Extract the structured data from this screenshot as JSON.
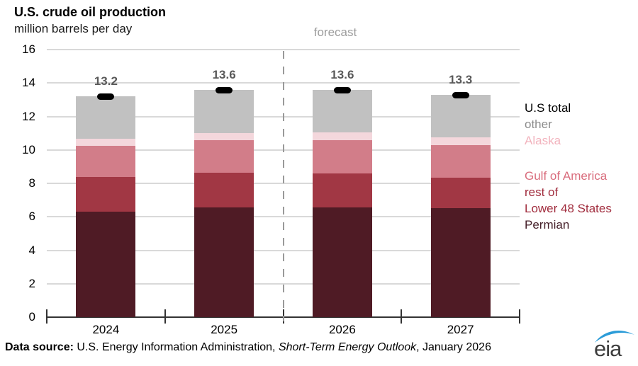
{
  "title": "U.S. crude oil production",
  "subtitle": "million barrels per day",
  "forecast_label": "forecast",
  "chart_data": {
    "type": "bar",
    "stacked": true,
    "categories": [
      "2024",
      "2025",
      "2026",
      "2027"
    ],
    "series": [
      {
        "name": "Permian",
        "color": "#4f1b25",
        "values": [
          6.3,
          6.55,
          6.55,
          6.5
        ]
      },
      {
        "name": "rest of Lower 48 States",
        "color": "#a13744",
        "values": [
          2.1,
          2.1,
          2.05,
          1.85
        ]
      },
      {
        "name": "Gulf of America",
        "color": "#d27d89",
        "values": [
          1.85,
          1.95,
          2.0,
          1.95
        ]
      },
      {
        "name": "Alaska",
        "color": "#f4d7dc",
        "values": [
          0.4,
          0.4,
          0.45,
          0.45
        ]
      },
      {
        "name": "other",
        "color": "#c1c1c1",
        "values": [
          2.55,
          2.6,
          2.55,
          2.55
        ]
      }
    ],
    "totals": [
      "13.2",
      "13.6",
      "13.6",
      "13.3"
    ],
    "total_marker": {
      "name": "U.S total",
      "color": "#000000"
    },
    "ylabel": "million barrels per day",
    "ylim": [
      0,
      16
    ],
    "yticks": [
      0,
      2,
      4,
      6,
      8,
      10,
      12,
      14,
      16
    ],
    "grid": true,
    "forecast_divider_after_category": "2025",
    "forecast_divider_index": 2
  },
  "legend": [
    {
      "label": "U.S total",
      "color": "#000000",
      "gap_before": false
    },
    {
      "label": "other",
      "color": "#8c8c8c",
      "gap_before": false
    },
    {
      "label": "Alaska",
      "color": "#f2b3bd",
      "gap_before": false
    },
    {
      "label": "Gulf of America",
      "color": "#d96d7d",
      "gap_before": true
    },
    {
      "label": "rest of",
      "color": "#a12d3e",
      "gap_before": false
    },
    {
      "label": "Lower 48 States",
      "color": "#a12d3e",
      "gap_before": false
    },
    {
      "label": "Permian",
      "color": "#46202a",
      "gap_before": false
    }
  ],
  "footer": {
    "bold": "Data source: ",
    "text1": "U.S. Energy Information Administration, ",
    "italic": "Short-Term Energy Outlook",
    "text2": ", January 2026"
  },
  "logo": {
    "text": "eia",
    "swoosh_color": "#2b9cd8"
  }
}
